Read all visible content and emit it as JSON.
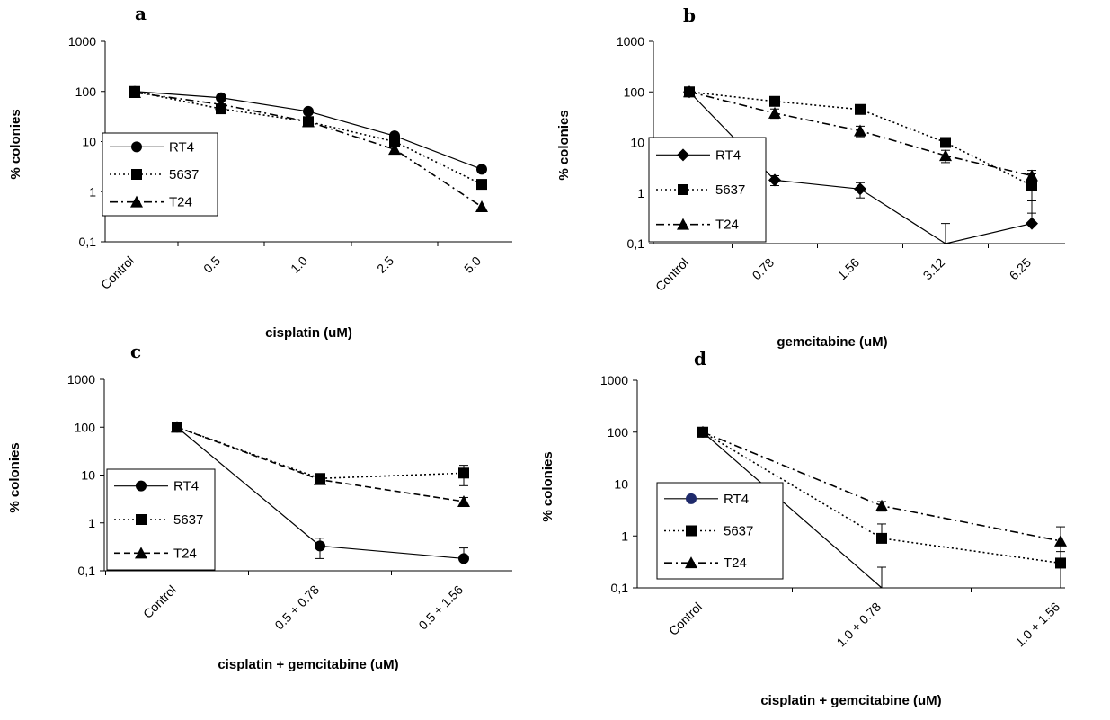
{
  "colors": {
    "ink": "#000000",
    "background": "#ffffff",
    "rt4_marker_panel_d": "#1f2a6b"
  },
  "chart_data": [
    {
      "panel": "a",
      "type": "line",
      "yscale": "log",
      "ylim": [
        0.1,
        1000
      ],
      "yticks": [
        "0,1",
        "1",
        "10",
        "100",
        "1000"
      ],
      "ylabel": "% colonies",
      "xlabel": "cisplatin (uM)",
      "categories": [
        "Control",
        "0.5",
        "1.0",
        "2.5",
        "5.0"
      ],
      "legend_position": "lower-left",
      "series": [
        {
          "name": "RT4",
          "marker": "circle",
          "line": "solid",
          "values": [
            100,
            75,
            40,
            13,
            2.8
          ],
          "errors": [
            0,
            0,
            0,
            0,
            0
          ]
        },
        {
          "name": "5637",
          "marker": "square",
          "line": "dotted",
          "values": [
            100,
            45,
            25,
            10,
            1.4
          ],
          "errors": [
            0,
            0,
            0,
            0,
            0
          ]
        },
        {
          "name": "T24",
          "marker": "triangle",
          "line": "dashdot",
          "values": [
            95,
            55,
            25,
            7,
            0.5
          ],
          "errors": [
            0,
            0,
            0,
            0,
            0
          ]
        }
      ]
    },
    {
      "panel": "b",
      "type": "line",
      "yscale": "log",
      "ylim": [
        0.1,
        1000
      ],
      "yticks": [
        "0,1",
        "1",
        "10",
        "100",
        "1000"
      ],
      "ylabel": "% colonies",
      "xlabel": "gemcitabine (uM)",
      "categories": [
        "Control",
        "0.78",
        "1.56",
        "3.12",
        "6.25"
      ],
      "legend_position": "lower-left",
      "series": [
        {
          "name": "RT4",
          "marker": "diamond",
          "line": "solid",
          "values": [
            100,
            1.8,
            1.2,
            0.08,
            0.25
          ],
          "errors": [
            0,
            0.4,
            0.4,
            0.15,
            0.45
          ]
        },
        {
          "name": "5637",
          "marker": "square",
          "line": "dotted",
          "values": [
            100,
            65,
            45,
            10,
            1.4
          ],
          "errors": [
            0,
            0,
            0,
            0,
            1.0
          ]
        },
        {
          "name": "T24",
          "marker": "triangle",
          "line": "dashdot",
          "values": [
            100,
            38,
            17,
            5.5,
            2.2
          ],
          "errors": [
            0,
            8,
            4,
            1.5,
            0.6
          ]
        }
      ]
    },
    {
      "panel": "c",
      "type": "line",
      "yscale": "log",
      "ylim": [
        0.1,
        1000
      ],
      "yticks": [
        "0,1",
        "1",
        "10",
        "100",
        "1000"
      ],
      "ylabel": "% colonies",
      "xlabel": "cisplatin + gemcitabine (uM)",
      "categories": [
        "Control",
        "0.5 + 0.78",
        "0.5 + 1.56"
      ],
      "legend_position": "lower-left",
      "series": [
        {
          "name": "RT4",
          "marker": "circle",
          "line": "solid",
          "values": [
            100,
            0.33,
            0.18
          ],
          "errors": [
            0,
            0.15,
            0.12
          ]
        },
        {
          "name": "5637",
          "marker": "square",
          "line": "dotted",
          "values": [
            100,
            8.5,
            11
          ],
          "errors": [
            0,
            1,
            5
          ]
        },
        {
          "name": "T24",
          "marker": "triangle",
          "line": "dashed",
          "values": [
            100,
            8,
            2.8
          ],
          "errors": [
            0,
            1,
            0.6
          ]
        }
      ]
    },
    {
      "panel": "d",
      "type": "line",
      "yscale": "log",
      "ylim": [
        0.1,
        1000
      ],
      "yticks": [
        "0,1",
        "1",
        "10",
        "100",
        "1000"
      ],
      "ylabel": "% colonies",
      "xlabel": "cisplatin + gemcitabine (uM)",
      "categories": [
        "Control",
        "1.0 + 0.78",
        "1.0 + 1.56"
      ],
      "legend_position": "lower-left",
      "series": [
        {
          "name": "RT4",
          "marker": "circle",
          "line": "solid",
          "values": [
            100,
            0.08,
            null
          ],
          "errors": [
            0,
            0.15,
            0
          ]
        },
        {
          "name": "5637",
          "marker": "square",
          "line": "dotted",
          "values": [
            100,
            0.9,
            0.3
          ],
          "errors": [
            0,
            0.8,
            0.2
          ]
        },
        {
          "name": "T24",
          "marker": "triangle",
          "line": "dashdot",
          "values": [
            100,
            3.8,
            0.8
          ],
          "errors": [
            0,
            0.8,
            0.7
          ]
        }
      ]
    }
  ]
}
